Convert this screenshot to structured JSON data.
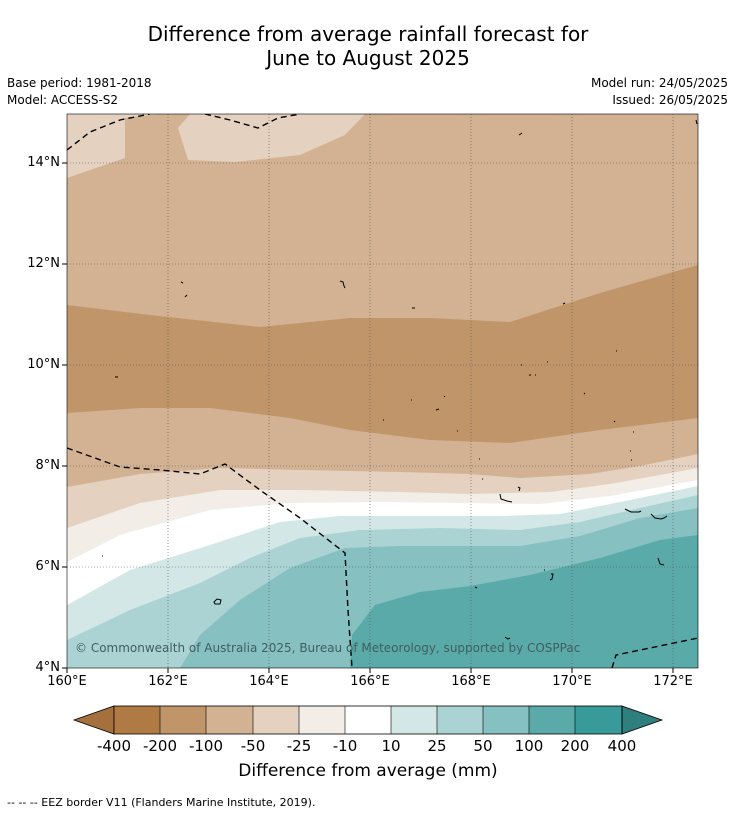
{
  "title_line1": "Difference from average rainfall forecast for",
  "title_line2": "June to August 2025",
  "meta": {
    "base_period": "Base period: 1981-2018",
    "model": "Model: ACCESS-S2",
    "model_run": "Model run: 24/05/2025",
    "issued": "Issued: 26/05/2025"
  },
  "axes": {
    "lat_labels": [
      "14°N",
      "12°N",
      "10°N",
      "8°N",
      "6°N",
      "4°N"
    ],
    "lon_labels": [
      "160°E",
      "162°E",
      "164°E",
      "166°E",
      "168°E",
      "170°E",
      "172°E"
    ]
  },
  "copyright": "© Commonwealth of Australia 2025, Bureau of Meteorology, supported by COSPPac",
  "colorbar": {
    "title": "Difference from average (mm)",
    "labels": [
      "-400",
      "-200",
      "-100",
      "-50",
      "-25",
      "-10",
      "10",
      "25",
      "50",
      "100",
      "200",
      "400"
    ],
    "colors": [
      "#a6703c",
      "#b07a44",
      "#c0956a",
      "#d2b293",
      "#e4d1c0",
      "#f2ede7",
      "#ffffff",
      "#d3e8e6",
      "#abd3d3",
      "#86c0c0",
      "#5aaaaa",
      "#389a99",
      "#2e7f7e"
    ]
  },
  "footnote": "--  --  -- EEZ border V11 (Flanders Marine Institute, 2019)."
}
